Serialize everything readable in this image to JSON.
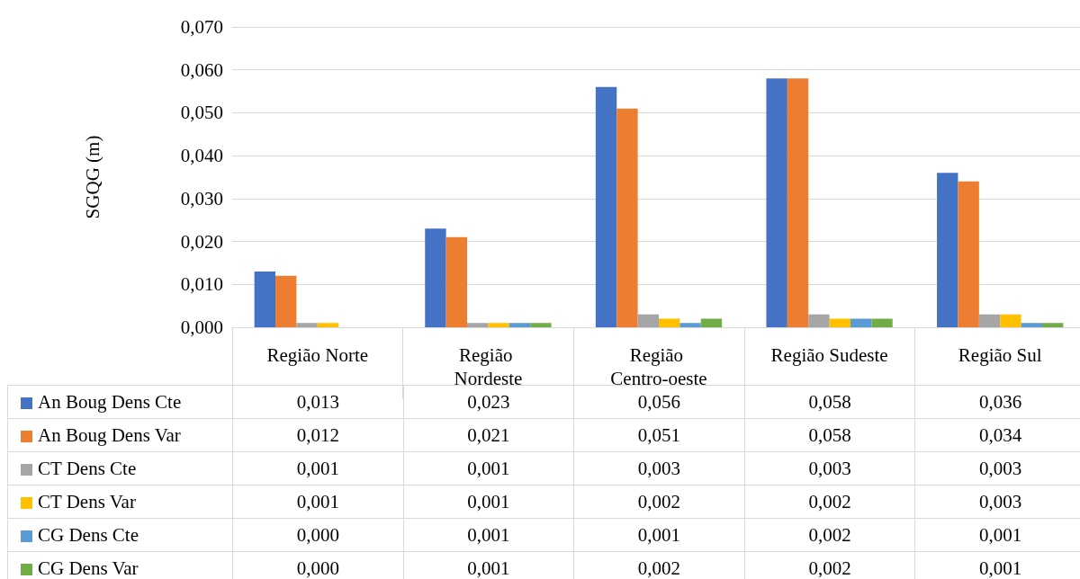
{
  "chart_data": {
    "type": "bar",
    "ylabel": "SGQG (m)",
    "categories": [
      "Região Norte",
      "Região Nordeste",
      "Região Centro-oeste",
      "Região Sudeste",
      "Região Sul"
    ],
    "series": [
      {
        "name": "An Boug Dens Cte",
        "color": "#4472c4",
        "values": [
          0.013,
          0.023,
          0.056,
          0.058,
          0.036
        ],
        "value_labels": [
          "0,013",
          "0,023",
          "0,056",
          "0,058",
          "0,036"
        ]
      },
      {
        "name": "An Boug Dens Var",
        "color": "#ed7d31",
        "values": [
          0.012,
          0.021,
          0.051,
          0.058,
          0.034
        ],
        "value_labels": [
          "0,012",
          "0,021",
          "0,051",
          "0,058",
          "0,034"
        ]
      },
      {
        "name": "CT Dens Cte",
        "color": "#a5a5a5",
        "values": [
          0.001,
          0.001,
          0.003,
          0.003,
          0.003
        ],
        "value_labels": [
          "0,001",
          "0,001",
          "0,003",
          "0,003",
          "0,003"
        ]
      },
      {
        "name": "CT Dens Var",
        "color": "#ffc000",
        "values": [
          0.001,
          0.001,
          0.002,
          0.002,
          0.003
        ],
        "value_labels": [
          "0,001",
          "0,001",
          "0,002",
          "0,002",
          "0,003"
        ]
      },
      {
        "name": "CG Dens Cte",
        "color": "#5b9bd5",
        "values": [
          0.0,
          0.001,
          0.001,
          0.002,
          0.001
        ],
        "value_labels": [
          "0,000",
          "0,001",
          "0,001",
          "0,002",
          "0,001"
        ]
      },
      {
        "name": "CG Dens Var",
        "color": "#70ad47",
        "values": [
          0.0,
          0.001,
          0.002,
          0.002,
          0.001
        ],
        "value_labels": [
          "0,000",
          "0,001",
          "0,002",
          "0,002",
          "0,001"
        ]
      }
    ],
    "ylim": [
      0,
      0.07
    ],
    "yticks": [
      {
        "value": 0,
        "label": "0,000"
      },
      {
        "value": 0.01,
        "label": "0,010"
      },
      {
        "value": 0.02,
        "label": "0,020"
      },
      {
        "value": 0.03,
        "label": "0,030"
      },
      {
        "value": 0.04,
        "label": "0,040"
      },
      {
        "value": 0.05,
        "label": "0,050"
      },
      {
        "value": 0.06,
        "label": "0,060"
      },
      {
        "value": 0.07,
        "label": "0,070"
      }
    ],
    "grid": "y",
    "legend": "bottom"
  }
}
